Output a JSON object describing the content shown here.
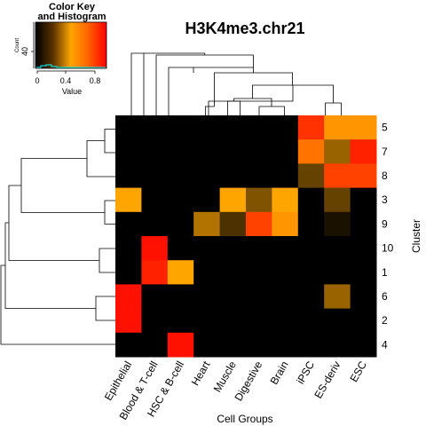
{
  "chart_data": {
    "type": "heatmap",
    "title": "H3K4me3.chr21",
    "xlabel": "Cell Groups",
    "ylabel": "Cluster",
    "columns": [
      "Epithelial",
      "Blood & T-cell",
      "HSC & B-cell",
      "Heart",
      "Muscle",
      "Digestive",
      "Brain",
      "iPSC",
      "ES-deriv",
      "ESC"
    ],
    "rows": [
      "5",
      "7",
      "8",
      "3",
      "9",
      "10",
      "1",
      "6",
      "2",
      "4"
    ],
    "values": [
      [
        0,
        0,
        0,
        0,
        0,
        0,
        0,
        0.85,
        0.55,
        0.55
      ],
      [
        0,
        0,
        0,
        0,
        0,
        0,
        0,
        0.65,
        0.3,
        0.9
      ],
      [
        0,
        0,
        0,
        0,
        0,
        0,
        0,
        0.2,
        0.8,
        0.8
      ],
      [
        0.5,
        0,
        0,
        0,
        0.5,
        0.25,
        0.5,
        0,
        0.2,
        0
      ],
      [
        0,
        0,
        0,
        0.35,
        0.15,
        0.8,
        0.55,
        0,
        0.05,
        0
      ],
      [
        0,
        0.95,
        0,
        0,
        0,
        0,
        0,
        0,
        0,
        0
      ],
      [
        0,
        0.9,
        0.5,
        0,
        0,
        0,
        0,
        0,
        0,
        0
      ],
      [
        0.95,
        0,
        0,
        0,
        0,
        0,
        0,
        0,
        0.3,
        0
      ],
      [
        0.95,
        0,
        0,
        0,
        0,
        0,
        0,
        0,
        0,
        0
      ],
      [
        0,
        0,
        0.95,
        0,
        0,
        0,
        0,
        0,
        0,
        0
      ]
    ],
    "color_scale": {
      "range": [
        0,
        1
      ],
      "colors": [
        "#000000",
        "#ffa500",
        "#ff0000"
      ]
    },
    "color_key": {
      "title_line1": "Color Key",
      "title_line2": "and Histogram",
      "xlabel": "Value",
      "ylabel": "Count",
      "xticks": [
        "0",
        "0.4",
        "0.8"
      ],
      "ytick": "40",
      "histogram_color": "#00ffff"
    },
    "grid": false,
    "legend_position": "top-left"
  }
}
